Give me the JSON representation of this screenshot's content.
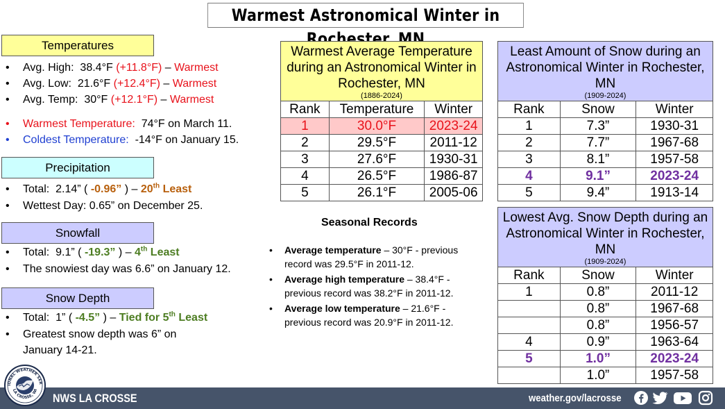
{
  "title": "Warmest Astronomical Winter in Rochester, MN",
  "colors": {
    "highlight_red": "#e8121b",
    "highlight_purple": "#7030a0",
    "temps_header_bg": "#ffff99",
    "precip_header_bg": "#ccffff",
    "snow_header_bg": "#ccccff",
    "footer_bg": "#46546a",
    "warm_title_bg": "#ffff99",
    "snow_title_bg": "#ccccff",
    "warm_hl_row_bg": "#ffc9c9"
  },
  "temperatures": {
    "header": "Temperatures",
    "avg_high": {
      "label": "Avg. High:",
      "value": "38.4°F",
      "dep": "(+11.8°F)",
      "sep": "–",
      "note": "Warmest"
    },
    "avg_low": {
      "label": "Avg. Low:",
      "value": "21.6°F",
      "dep": "(+12.4°F)",
      "sep": "–",
      "note": "Warmest"
    },
    "avg_temp": {
      "label": "Avg. Temp:",
      "value": "30°F",
      "dep": "(+12.1°F)",
      "sep": "–",
      "note": "Warmest"
    },
    "warmest": {
      "label": "Warmest Temperature:",
      "value": "74°F on March 11."
    },
    "coldest": {
      "label": "Coldest Temperature:",
      "value": "-14°F on January 15."
    }
  },
  "precipitation": {
    "header": "Precipitation",
    "total": {
      "label": "Total:",
      "value": "2.14”",
      "dep": "-0.96”",
      "sep": "–",
      "rank_num": "20",
      "rank_sup": "th",
      "rank_text": "Least"
    },
    "wettest": "Wettest Day:  0.65” on December 25."
  },
  "snowfall": {
    "header": "Snowfall",
    "total": {
      "label": "Total:",
      "value": "9.1”",
      "dep": "-19.3”",
      "sep": "–",
      "rank_num": "4",
      "rank_sup": "th",
      "rank_text": "Least"
    },
    "snowiest": "The snowiest day was 6.6” on January 12."
  },
  "snow_depth": {
    "header": "Snow Depth",
    "total": {
      "label": "Total:",
      "value": "1”",
      "dep": "-4.5”",
      "sep": "–",
      "rank_pre": "Tied for 5",
      "rank_sup": "th",
      "rank_text": "Least"
    },
    "greatest": "Greatest snow depth was 6” on January 14-21."
  },
  "warmest_table": {
    "title": "Warmest Average Temperature during an Astronomical Winter in Rochester, MN",
    "years": "(1886-2024)",
    "columns": [
      "Rank",
      "Temperature",
      "Winter"
    ],
    "rows": [
      [
        "1",
        "30.0°F",
        "2023-24"
      ],
      [
        "2",
        "29.5°F",
        "2011-12"
      ],
      [
        "3",
        "27.6°F",
        "1930-31"
      ],
      [
        "4",
        "26.5°F",
        "1986-87"
      ],
      [
        "5",
        "26.1°F",
        "2005-06"
      ]
    ]
  },
  "snow_table": {
    "title": "Least Amount of Snow during an Astronomical Winter in Rochester, MN",
    "years": "(1909-2024)",
    "columns": [
      "Rank",
      "Snow",
      "Winter"
    ],
    "rows": [
      [
        "1",
        "7.3”",
        "1930-31"
      ],
      [
        "2",
        "7.7”",
        "1967-68"
      ],
      [
        "3",
        "8.1”",
        "1957-58"
      ],
      [
        "4",
        "9.1”",
        "2023-24"
      ],
      [
        "5",
        "9.4”",
        "1913-14"
      ]
    ]
  },
  "depth_table": {
    "title": "Lowest Avg. Snow Depth during an Astronomical Winter in Rochester, MN",
    "years": "(1909-2024)",
    "columns": [
      "Rank",
      "Snow",
      "Winter"
    ],
    "rows": [
      [
        "1",
        "0.8”",
        "2011-12"
      ],
      [
        "",
        "0.8”",
        "1967-68"
      ],
      [
        "",
        "0.8”",
        "1956-57"
      ],
      [
        "4",
        "0.9”",
        "1963-64"
      ],
      [
        "5",
        "1.0”",
        "2023-24"
      ],
      [
        "",
        "1.0”",
        "1957-58"
      ]
    ]
  },
  "seasonal": {
    "title": "Seasonal Records",
    "records": [
      {
        "label": "Average temperature",
        "text": "– 30°F - previous record was 29.5°F in 2011-12."
      },
      {
        "label": "Average high temperature",
        "text": "– 38.4°F - previous record was 38.2°F in 2011-12."
      },
      {
        "label": "Average low temperature",
        "text": "– 21.6°F - previous record was 20.9°F in 2011-12."
      }
    ]
  },
  "footer": {
    "logo_text": "NATIONAL WEATHER SERVICE",
    "logo_sub": "LA CROSSE, WI",
    "office": "NWS LA CROSSE",
    "url": "weather.gov/lacrosse",
    "social_icons": [
      "facebook-icon",
      "twitter-icon",
      "youtube-icon",
      "instagram-icon"
    ]
  }
}
